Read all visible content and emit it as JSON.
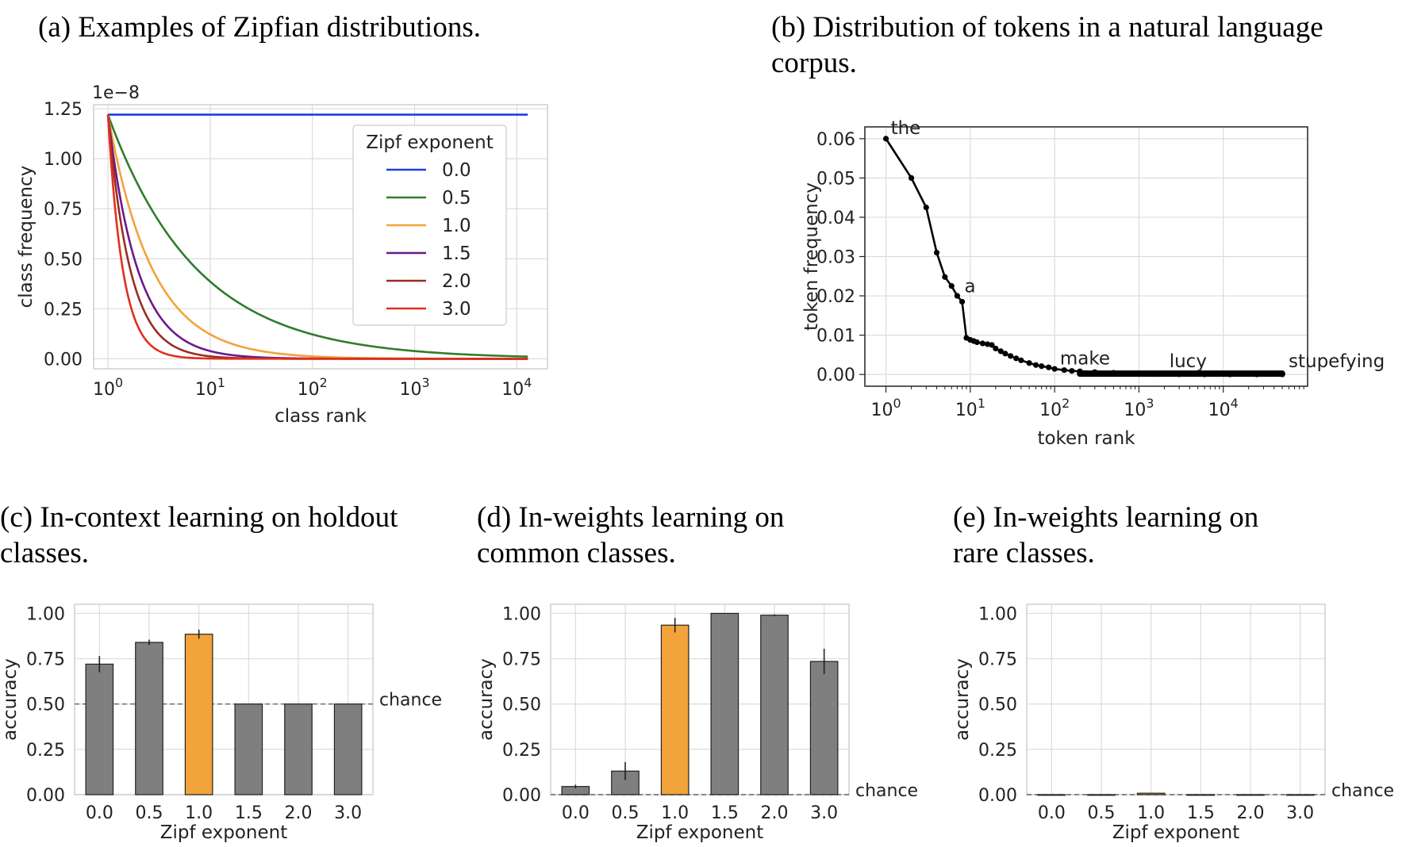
{
  "captions": {
    "a": "(a) Examples of Zipfian distributions.",
    "b1": "(b) Distribution of tokens in a natural language",
    "b2": "corpus.",
    "c1": "(c) In-context learning on holdout",
    "c2": "classes.",
    "d1": "(d) In-weights learning on",
    "d2": "common classes.",
    "e1": "(e) In-weights learning on",
    "e2": "rare classes."
  },
  "chart_data": [
    {
      "id": "a",
      "type": "line",
      "xlabel": "class rank",
      "ylabel": "class frequency",
      "xscale": "log",
      "xlim_log10": [
        -0.14,
        4.3
      ],
      "ylim": [
        -0.05,
        1.27
      ],
      "offset_label": "1e−8",
      "yticks": [
        "0.00",
        "0.25",
        "0.50",
        "0.75",
        "1.00",
        "1.25"
      ],
      "ytick_values": [
        0,
        0.25,
        0.5,
        0.75,
        1.0,
        1.25
      ],
      "xticks_exp": [
        "0",
        "1",
        "2",
        "3",
        "4"
      ],
      "xtick_base": "10",
      "x_max_rank": 12800,
      "y_start": 1.22,
      "legend": {
        "title": "Zipf exponent",
        "position": "upper-right"
      },
      "series": [
        {
          "name": "0.0",
          "exponent": 0.0,
          "color": "#1f3ee0"
        },
        {
          "name": "0.5",
          "exponent": 0.5,
          "color": "#2f7d2a"
        },
        {
          "name": "1.0",
          "exponent": 1.0,
          "color": "#f2a33a"
        },
        {
          "name": "1.5",
          "exponent": 1.5,
          "color": "#6a1a8a"
        },
        {
          "name": "2.0",
          "exponent": 2.0,
          "color": "#9a2d22"
        },
        {
          "name": "3.0",
          "exponent": 3.0,
          "color": "#e0301e"
        }
      ]
    },
    {
      "id": "b",
      "type": "line",
      "xlabel": "token rank",
      "ylabel": "token frequency",
      "xscale": "log",
      "xlim_log10": [
        -0.25,
        5.0
      ],
      "ylim": [
        -0.003,
        0.063
      ],
      "yticks": [
        "0.00",
        "0.01",
        "0.02",
        "0.03",
        "0.04",
        "0.05",
        "0.06"
      ],
      "ytick_values": [
        0,
        0.01,
        0.02,
        0.03,
        0.04,
        0.05,
        0.06
      ],
      "xticks_exp": [
        "0",
        "1",
        "2",
        "3",
        "4"
      ],
      "xtick_base": "10",
      "color": "#000000",
      "points": [
        [
          1,
          0.06
        ],
        [
          2,
          0.05
        ],
        [
          3,
          0.0425
        ],
        [
          4,
          0.031
        ],
        [
          5,
          0.0248
        ],
        [
          6,
          0.0225
        ],
        [
          7,
          0.02
        ],
        [
          8,
          0.0185
        ],
        [
          9,
          0.0093
        ],
        [
          10,
          0.0088
        ],
        [
          11,
          0.0085
        ],
        [
          12,
          0.0082
        ],
        [
          14,
          0.0079
        ],
        [
          16,
          0.0077
        ],
        [
          18,
          0.0075
        ],
        [
          20,
          0.0066
        ],
        [
          23,
          0.0059
        ],
        [
          26,
          0.0053
        ],
        [
          30,
          0.0047
        ],
        [
          35,
          0.0041
        ],
        [
          40,
          0.0036
        ],
        [
          50,
          0.0029
        ],
        [
          60,
          0.0024
        ],
        [
          70,
          0.0021
        ],
        [
          85,
          0.0018
        ],
        [
          100,
          0.0014
        ],
        [
          130,
          0.0011
        ],
        [
          160,
          0.0009
        ],
        [
          200,
          0.0008
        ],
        [
          300,
          0.0006
        ],
        [
          500,
          0.0004
        ],
        [
          800,
          0.0002
        ],
        [
          1500,
          0.0001
        ],
        [
          3000,
          6e-05
        ],
        [
          6000,
          3e-05
        ],
        [
          12000,
          2e-05
        ],
        [
          25000,
          1e-05
        ],
        [
          50000,
          1e-05
        ]
      ],
      "annotations": [
        {
          "text": "the",
          "rank": 1
        },
        {
          "text": "a",
          "rank": 8
        },
        {
          "text": "make",
          "rank": 150
        },
        {
          "text": "lucy",
          "rank": 2500
        },
        {
          "text": "stupefying",
          "rank": 50000
        }
      ]
    },
    {
      "id": "c",
      "type": "bar",
      "xlabel": "Zipf exponent",
      "ylabel": "accuracy",
      "categories": [
        "0.0",
        "0.5",
        "1.0",
        "1.5",
        "2.0",
        "3.0"
      ],
      "values": [
        0.72,
        0.84,
        0.885,
        0.5,
        0.5,
        0.5
      ],
      "errors": [
        0.045,
        0.015,
        0.025,
        0.0,
        0.0,
        0.0
      ],
      "colors": [
        "#7f7f7f",
        "#7f7f7f",
        "#f2a33a",
        "#7f7f7f",
        "#7f7f7f",
        "#7f7f7f"
      ],
      "ylim": [
        0,
        1.05
      ],
      "yticks": [
        "0.00",
        "0.25",
        "0.50",
        "0.75",
        "1.00"
      ],
      "ytick_values": [
        0,
        0.25,
        0.5,
        0.75,
        1.0
      ],
      "chance": {
        "value": 0.5,
        "label": "chance"
      }
    },
    {
      "id": "d",
      "type": "bar",
      "xlabel": "Zipf exponent",
      "ylabel": "accuracy",
      "categories": [
        "0.0",
        "0.5",
        "1.0",
        "1.5",
        "2.0",
        "3.0"
      ],
      "values": [
        0.045,
        0.13,
        0.935,
        1.0,
        0.99,
        0.735
      ],
      "errors": [
        0.01,
        0.05,
        0.04,
        0.0,
        0.005,
        0.07
      ],
      "colors": [
        "#7f7f7f",
        "#7f7f7f",
        "#f2a33a",
        "#7f7f7f",
        "#7f7f7f",
        "#7f7f7f"
      ],
      "ylim": [
        0,
        1.05
      ],
      "yticks": [
        "0.00",
        "0.25",
        "0.50",
        "0.75",
        "1.00"
      ],
      "ytick_values": [
        0,
        0.25,
        0.5,
        0.75,
        1.0
      ],
      "chance": {
        "value": 0.0,
        "label": "chance"
      }
    },
    {
      "id": "e",
      "type": "bar",
      "xlabel": "Zipf exponent",
      "ylabel": "accuracy",
      "categories": [
        "0.0",
        "0.5",
        "1.0",
        "1.5",
        "2.0",
        "3.0"
      ],
      "values": [
        0.0,
        0.0,
        0.008,
        0.0,
        0.0,
        0.0
      ],
      "errors": [
        0.0,
        0.0,
        0.0,
        0.0,
        0.0,
        0.0
      ],
      "colors": [
        "#7f7f7f",
        "#7f7f7f",
        "#f2a33a",
        "#7f7f7f",
        "#7f7f7f",
        "#7f7f7f"
      ],
      "ylim": [
        0,
        1.05
      ],
      "yticks": [
        "0.00",
        "0.25",
        "0.50",
        "0.75",
        "1.00"
      ],
      "ytick_values": [
        0,
        0.25,
        0.5,
        0.75,
        1.0
      ],
      "chance": {
        "value": 0.0,
        "label": "chance"
      }
    }
  ]
}
